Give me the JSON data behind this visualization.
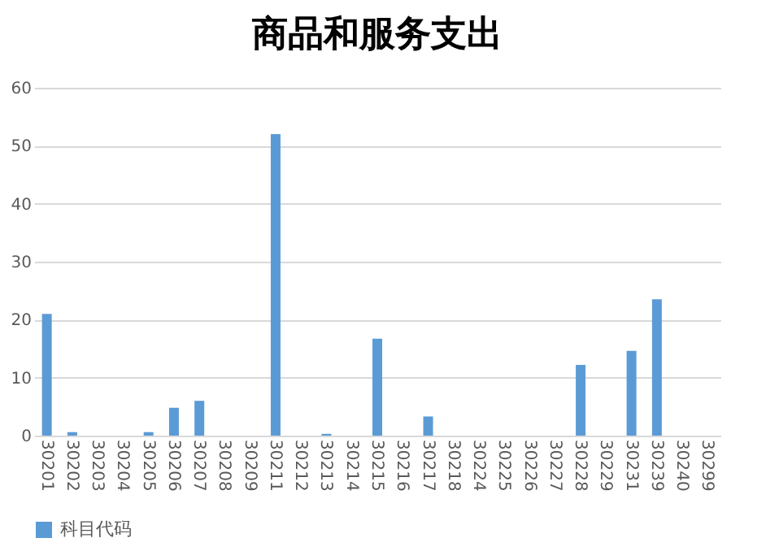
{
  "chart_data": {
    "type": "bar",
    "title": "商品和服务支出",
    "categories": [
      "30201",
      "30202",
      "30203",
      "30204",
      "30205",
      "30206",
      "30207",
      "30208",
      "30209",
      "30211",
      "30212",
      "30213",
      "30214",
      "30215",
      "30216",
      "30217",
      "30218",
      "30224",
      "30225",
      "30226",
      "30227",
      "30228",
      "30229",
      "30231",
      "30239",
      "30240",
      "30299"
    ],
    "series": [
      {
        "name": "科目代码",
        "color": "#5b9bd5",
        "values": [
          21,
          0.6,
          0,
          0,
          0.6,
          4.8,
          6,
          0,
          0,
          52,
          0,
          0.3,
          0,
          16.7,
          0,
          3.3,
          0,
          0,
          0,
          0,
          0,
          12.2,
          0,
          14.6,
          23.5,
          0,
          0
        ]
      }
    ],
    "ylim": [
      0,
      60
    ],
    "yticks": [
      0,
      10,
      20,
      30,
      40,
      50,
      60
    ],
    "grid": "y",
    "legend": "bottom"
  }
}
